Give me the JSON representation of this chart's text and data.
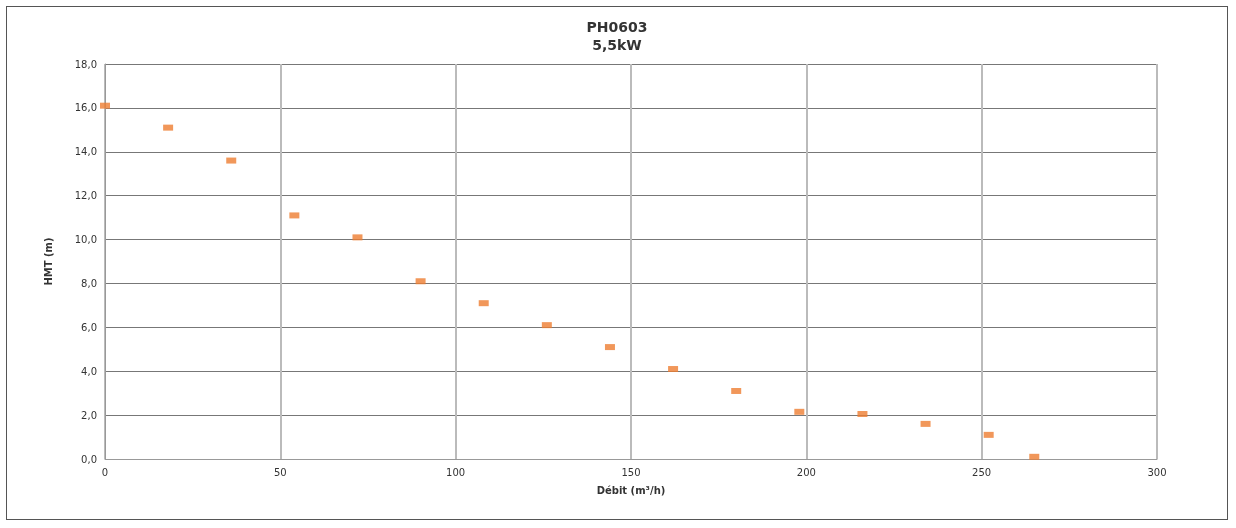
{
  "chart_data": {
    "type": "scatter",
    "title": "PH0603",
    "subtitle": "5,5kW",
    "xlabel": "Débit (m³/h)",
    "ylabel": "HMT (m)",
    "x": [
      0,
      18,
      36,
      54,
      72,
      90,
      108,
      126,
      144,
      162,
      180,
      198,
      216,
      234,
      252,
      265
    ],
    "series": [
      {
        "color": "#ed7d31",
        "values": [
          16.1,
          15.1,
          13.6,
          11.1,
          10.1,
          8.1,
          7.1,
          6.1,
          5.1,
          4.1,
          3.1,
          2.15,
          2.05,
          1.6,
          1.1,
          0.1
        ]
      }
    ],
    "xlim": [
      0,
      300
    ],
    "xticks": [
      0,
      50,
      100,
      150,
      200,
      250,
      300
    ],
    "ylim": [
      0,
      18
    ],
    "yticks": [
      {
        "value": 0,
        "label": "0,0"
      },
      {
        "value": 2,
        "label": "2,0"
      },
      {
        "value": 4,
        "label": "4,0"
      },
      {
        "value": 6,
        "label": "6,0"
      },
      {
        "value": 8,
        "label": "8,0"
      },
      {
        "value": 10,
        "label": "10,0"
      },
      {
        "value": 12,
        "label": "12,0"
      },
      {
        "value": 14,
        "label": "14,0"
      },
      {
        "value": 16,
        "label": "16,0"
      },
      {
        "value": 18,
        "label": "18,0"
      }
    ],
    "grid": true,
    "marker": "square"
  }
}
